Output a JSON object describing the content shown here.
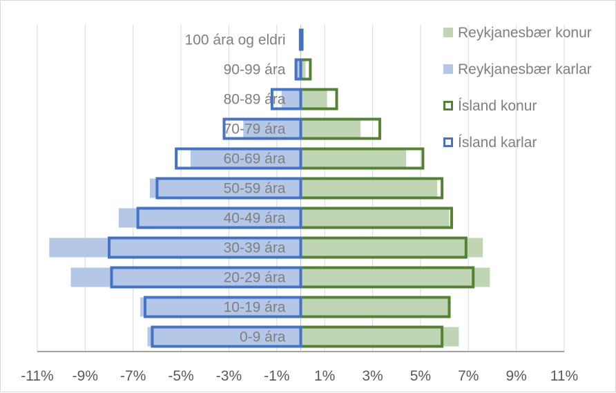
{
  "chart_data": {
    "type": "bar",
    "orientation": "horizontal",
    "categories": [
      "0-9 ára",
      "10-19 ára",
      "20-29 ára",
      "30-39 ára",
      "40-49 ára",
      "50-59 ára",
      "60-69 ára",
      "70-79 ára",
      "80-89 ára",
      "90-99 ára",
      "100 ára og eldri"
    ],
    "series": [
      {
        "name": "Reykjanesbær konur",
        "style": "filled",
        "color": "#c0d5b4",
        "values": [
          6.6,
          6.2,
          7.9,
          7.6,
          6.2,
          5.7,
          4.4,
          2.5,
          1.1,
          0.2,
          0.02
        ]
      },
      {
        "name": "Reykjanesbær karlar",
        "style": "filled",
        "color": "#b4c7e7",
        "values": [
          -6.4,
          -6.7,
          -9.6,
          -10.5,
          -7.6,
          -6.3,
          -4.6,
          -2.4,
          -0.8,
          -0.2,
          -0.01
        ]
      },
      {
        "name": "Ísland konur",
        "style": "outline",
        "color": "#548235",
        "values": [
          5.9,
          6.2,
          7.2,
          6.9,
          6.3,
          5.9,
          5.1,
          3.3,
          1.5,
          0.4,
          0.05
        ]
      },
      {
        "name": "Ísland karlar",
        "style": "outline",
        "color": "#4472c4",
        "values": [
          -6.2,
          -6.5,
          -7.9,
          -8.0,
          -6.8,
          -6.0,
          -5.2,
          -3.2,
          -1.2,
          -0.2,
          -0.02
        ]
      }
    ],
    "xlim": [
      -11,
      11
    ],
    "xticks": [
      -11,
      -9,
      -7,
      -5,
      -3,
      -1,
      1,
      3,
      5,
      7,
      9,
      11
    ],
    "xtick_labels": [
      "-11%",
      "-9%",
      "-7%",
      "-5%",
      "-3%",
      "-1%",
      "1%",
      "3%",
      "5%",
      "7%",
      "9%",
      "11%"
    ],
    "grid": "vertical",
    "legend_position": "top-right",
    "title": "",
    "xlabel": "",
    "ylabel": ""
  }
}
